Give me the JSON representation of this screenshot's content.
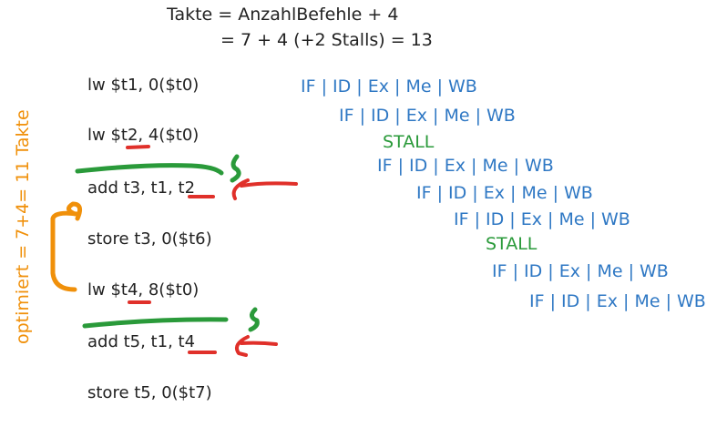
{
  "title": {
    "line1": "Takte = AnzahlBefehle + 4",
    "line2": "= 7 + 4 (+2 Stalls) = 13"
  },
  "instructions": [
    "lw $t1, 0($t0)",
    "lw $t2, 4($t0)",
    "add t3, t1, t2",
    "store t3, 0($t6)",
    "lw $t4, 8($t0)",
    "add t5, t1, t4",
    "store t5, 0($t7)"
  ],
  "pipeline": {
    "stage_row": "IF | ID | Ex | Me | WB",
    "stall_label": "STALL"
  },
  "annotation": {
    "optimized": "optimiert = 7+4= 11 Takte"
  },
  "colors": {
    "pipeline": "#2f78c4",
    "stall": "#2a9a3a",
    "annotation": "#f0900a",
    "hazard": "#e0302a"
  }
}
